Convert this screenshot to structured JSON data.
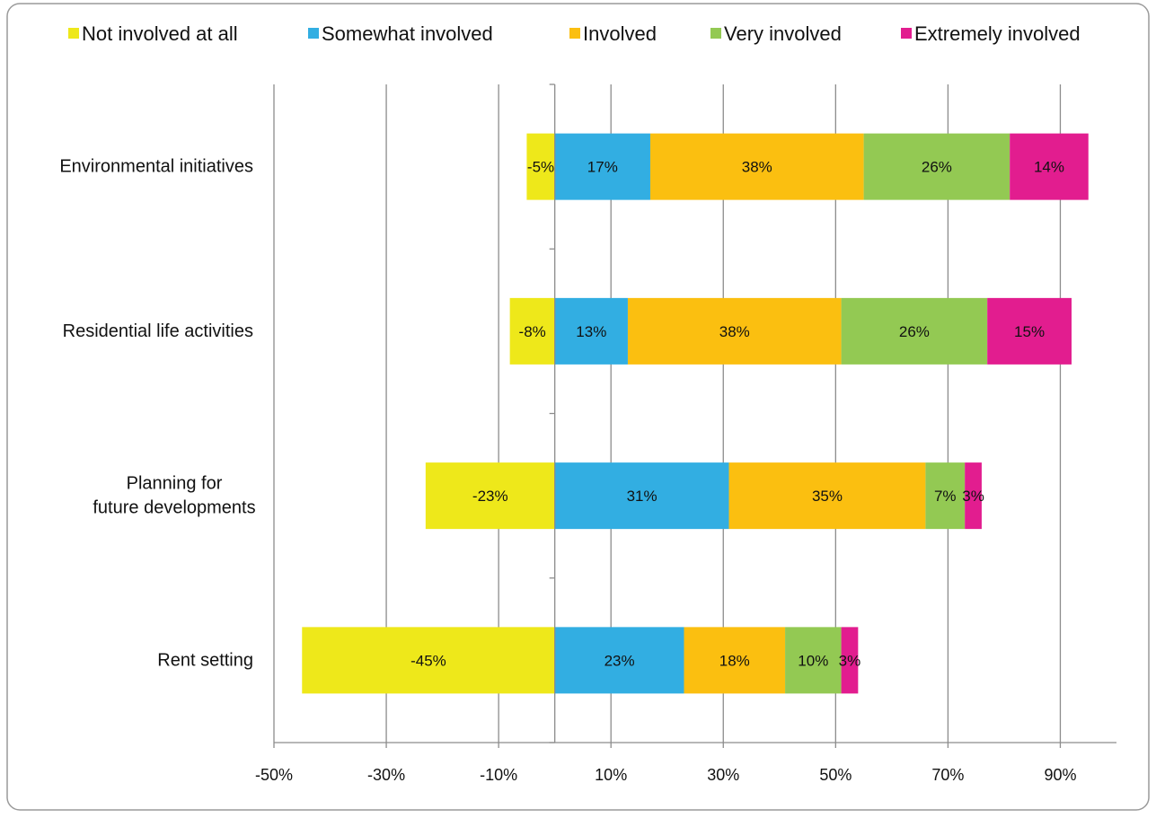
{
  "colors": {
    "not_involved": "#EEE81A",
    "somewhat": "#32AEE2",
    "involved": "#FBBF10",
    "very": "#93C953",
    "extremely": "#E21D8F"
  },
  "chart_data": {
    "type": "bar",
    "orientation": "horizontal",
    "stacked": true,
    "title": "",
    "xlabel": "",
    "ylabel": "",
    "categories": [
      "Environmental initiatives",
      "Residential life activities",
      "Planning for future developments",
      "Rent setting"
    ],
    "category_labels": [
      [
        "Environmental initiatives"
      ],
      [
        "Residential life activities"
      ],
      [
        "Planning for",
        "future developments"
      ],
      [
        "Rent setting"
      ]
    ],
    "series": [
      {
        "name": "Not involved at all",
        "color": "#EEE81A",
        "values": [
          -5,
          -8,
          -23,
          -45
        ],
        "labels": [
          "-5%",
          "-8%",
          "-23%",
          "-45%"
        ]
      },
      {
        "name": "Somewhat involved",
        "color": "#32AEE2",
        "values": [
          17,
          13,
          31,
          23
        ],
        "labels": [
          "17%",
          "13%",
          "31%",
          "23%"
        ]
      },
      {
        "name": "Involved",
        "color": "#FBBF10",
        "values": [
          38,
          38,
          35,
          18
        ],
        "labels": [
          "38%",
          "38%",
          "35%",
          "18%"
        ]
      },
      {
        "name": "Very involved",
        "color": "#93C953",
        "values": [
          26,
          26,
          7,
          10
        ],
        "labels": [
          "26%",
          "26%",
          "7%",
          "10%"
        ]
      },
      {
        "name": "Extremely involved",
        "color": "#E21D8F",
        "values": [
          14,
          15,
          3,
          3
        ],
        "labels": [
          "14%",
          "15%",
          "3%",
          "3%"
        ]
      }
    ],
    "xlim": [
      -50,
      100
    ],
    "x_ticks": [
      -50,
      -30,
      -10,
      10,
      30,
      50,
      70,
      90
    ],
    "x_tick_labels": [
      "-50%",
      "-30%",
      "-10%",
      "10%",
      "30%",
      "50%",
      "70%",
      "90%"
    ],
    "grid": true,
    "legend_position": "top"
  }
}
